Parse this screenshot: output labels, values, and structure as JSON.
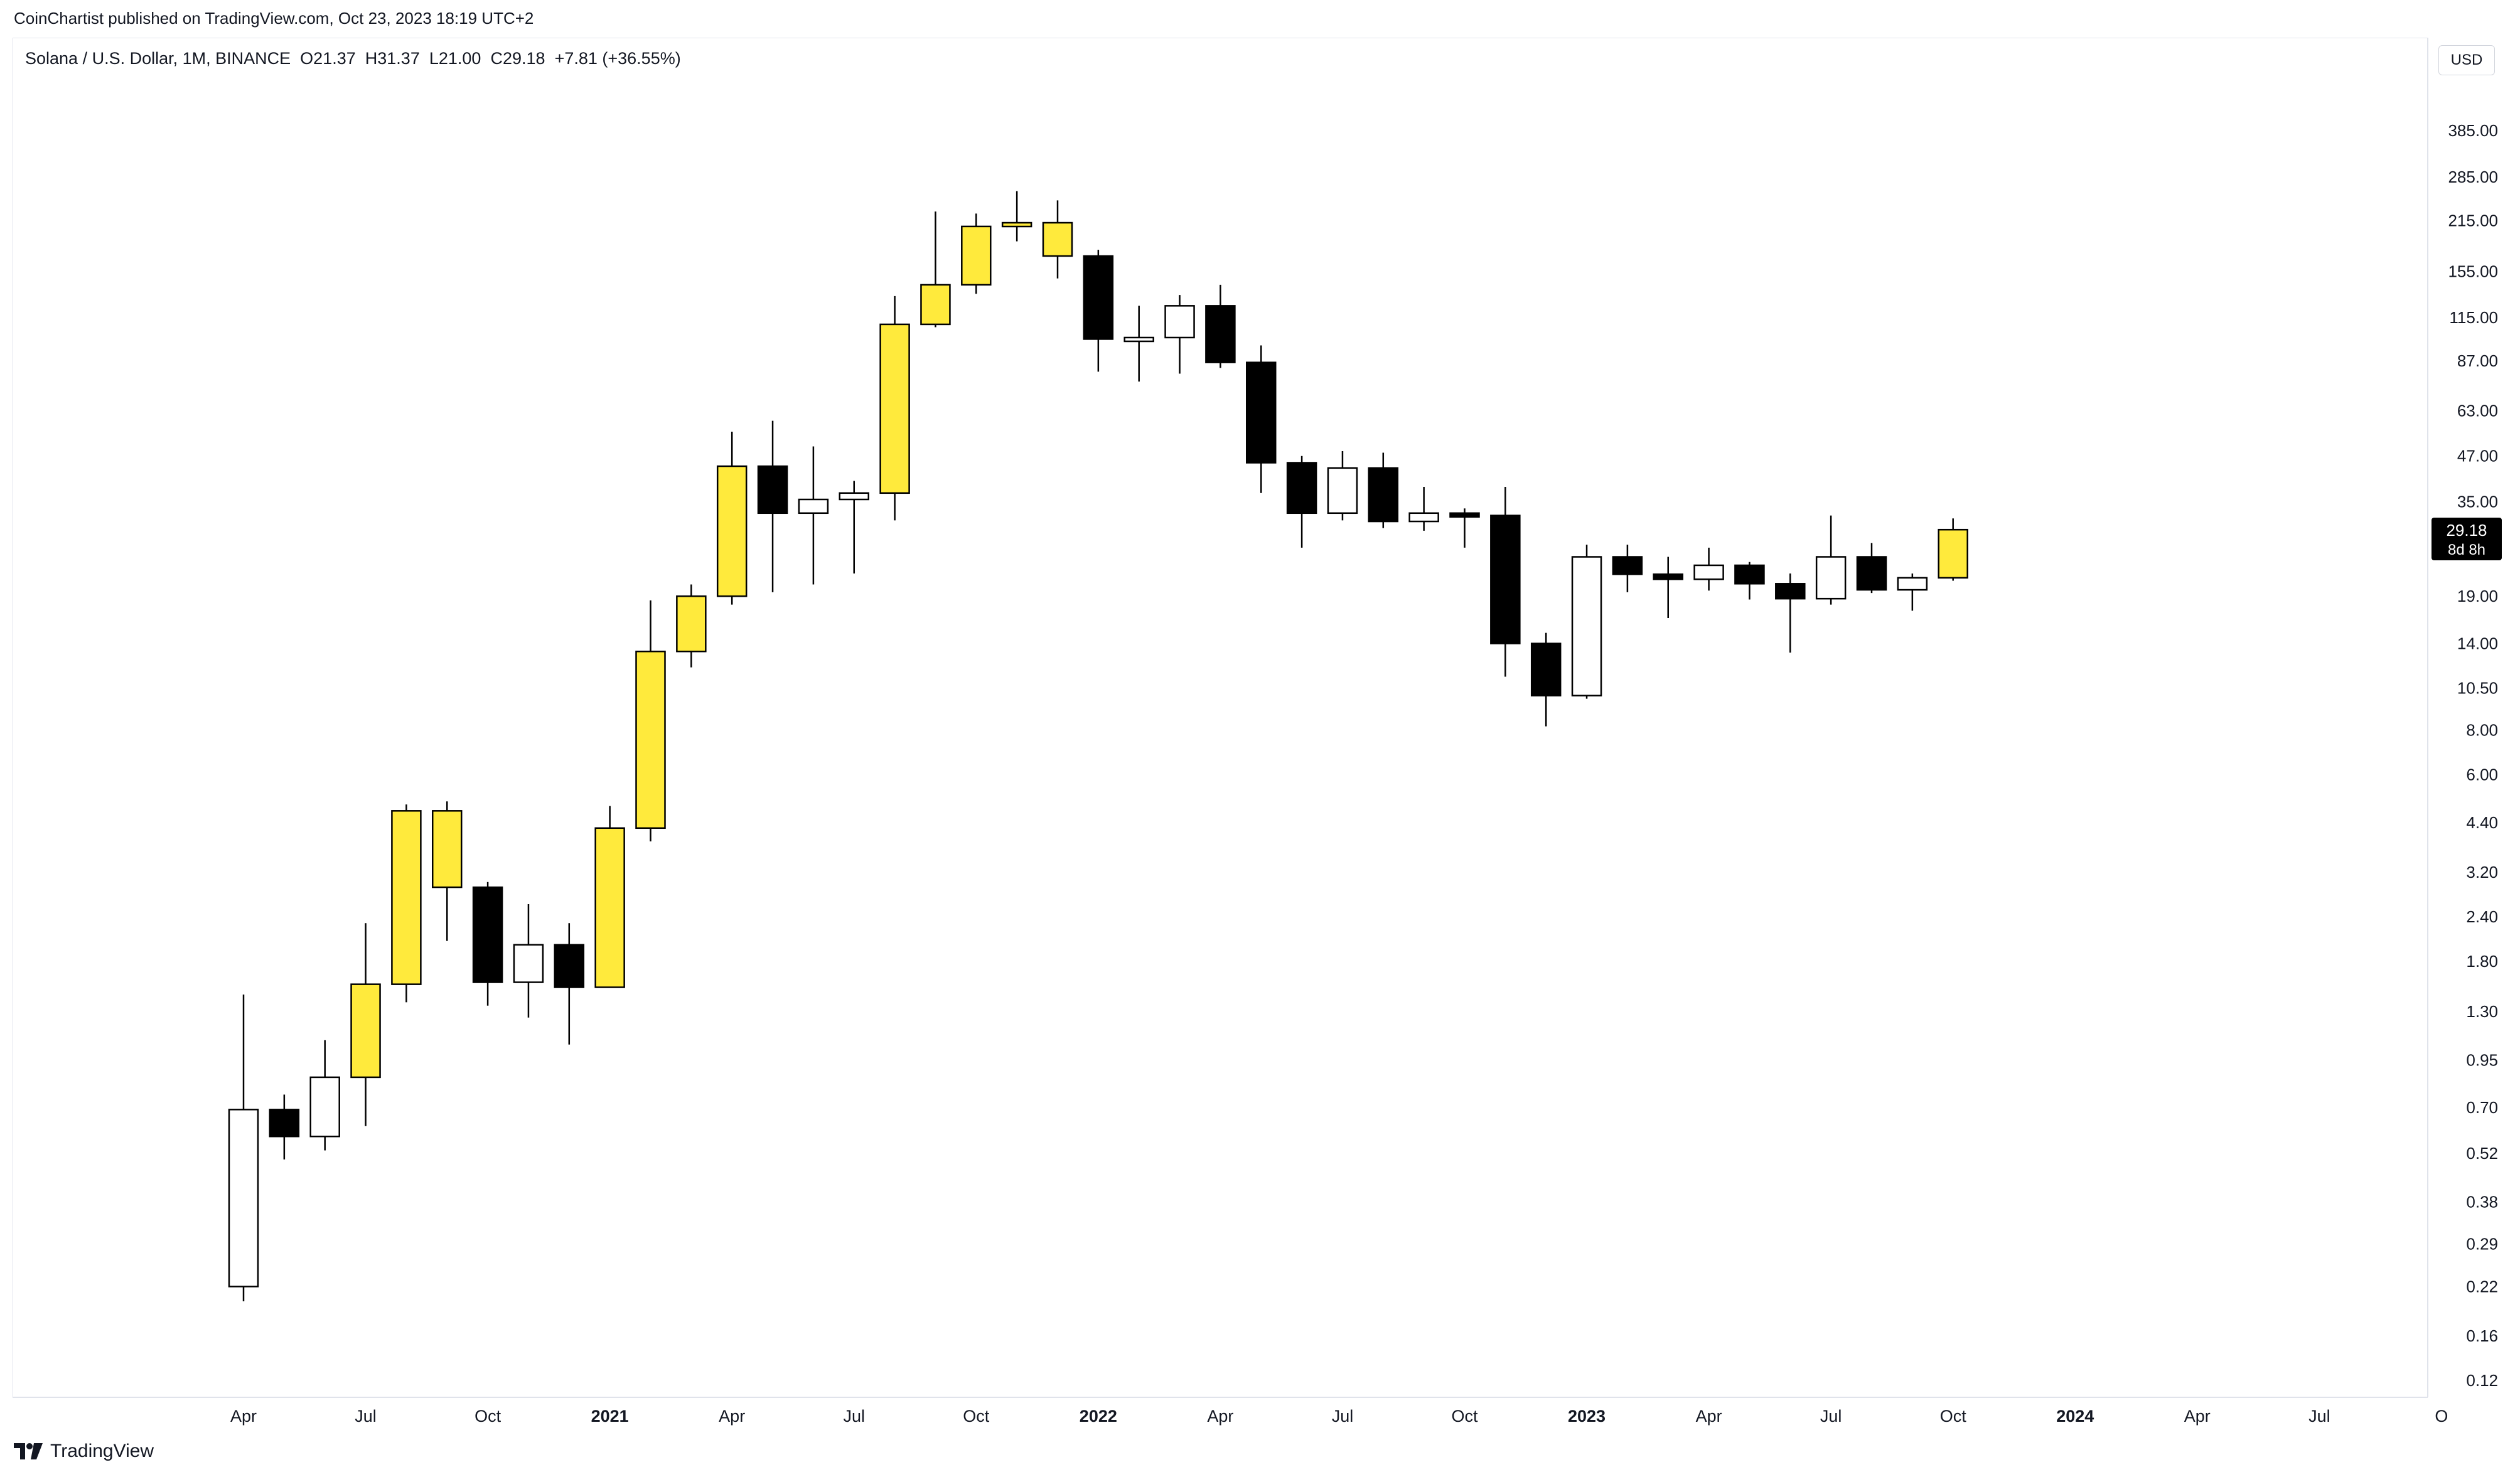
{
  "publisher": "CoinChartist published on TradingView.com, Oct 23, 2023 18:19 UTC+2",
  "legend": {
    "symbol": "Solana / U.S. Dollar, 1M, BINANCE",
    "open": "O21.37",
    "high": "H31.37",
    "low": "L21.00",
    "close": "C29.18",
    "change": "+7.81 (+36.55%)"
  },
  "currency_label": "USD",
  "price_tag": {
    "value": "29.18",
    "countdown": "8d 8h"
  },
  "footer_brand": "TradingView",
  "colors": {
    "bull": "#ffea3c",
    "bear": "#000000",
    "neutral": "#ffffff",
    "axis_text": "#131722",
    "tag_bg": "#000000"
  },
  "chart_data": {
    "type": "candlestick",
    "title": "Solana / U.S. Dollar, 1M, BINANCE",
    "y_scale": "log",
    "ylim": [
      0.1,
      600
    ],
    "y_ticks": [
      "385.00",
      "285.00",
      "215.00",
      "155.00",
      "115.00",
      "87.00",
      "63.00",
      "47.00",
      "35.00",
      "19.00",
      "14.00",
      "10.50",
      "8.00",
      "6.00",
      "4.40",
      "3.20",
      "2.40",
      "1.80",
      "1.30",
      "0.95",
      "0.70",
      "0.52",
      "0.38",
      "0.29",
      "0.22",
      "0.16",
      "0.12"
    ],
    "x_ticks": [
      {
        "label": "Apr",
        "index": 0,
        "bold": false
      },
      {
        "label": "Jul",
        "index": 3,
        "bold": false
      },
      {
        "label": "Oct",
        "index": 6,
        "bold": false
      },
      {
        "label": "2021",
        "index": 9,
        "bold": true
      },
      {
        "label": "Apr",
        "index": 12,
        "bold": false
      },
      {
        "label": "Jul",
        "index": 15,
        "bold": false
      },
      {
        "label": "Oct",
        "index": 18,
        "bold": false
      },
      {
        "label": "2022",
        "index": 21,
        "bold": true
      },
      {
        "label": "Apr",
        "index": 24,
        "bold": false
      },
      {
        "label": "Jul",
        "index": 27,
        "bold": false
      },
      {
        "label": "Oct",
        "index": 30,
        "bold": false
      },
      {
        "label": "2023",
        "index": 33,
        "bold": true
      },
      {
        "label": "Apr",
        "index": 36,
        "bold": false
      },
      {
        "label": "Jul",
        "index": 39,
        "bold": false
      },
      {
        "label": "Oct",
        "index": 42,
        "bold": false
      },
      {
        "label": "2024",
        "index": 45,
        "bold": true
      },
      {
        "label": "Apr",
        "index": 48,
        "bold": false
      },
      {
        "label": "Jul",
        "index": 51,
        "bold": false
      },
      {
        "label": "O",
        "index": 54,
        "bold": false
      }
    ],
    "candles": [
      {
        "o": 0.22,
        "h": 1.45,
        "l": 0.2,
        "c": 0.69,
        "s": "n"
      },
      {
        "o": 0.69,
        "h": 0.76,
        "l": 0.5,
        "c": 0.58,
        "s": "b"
      },
      {
        "o": 0.58,
        "h": 1.08,
        "l": 0.53,
        "c": 0.85,
        "s": "n"
      },
      {
        "o": 0.85,
        "h": 2.3,
        "l": 0.62,
        "c": 1.55,
        "s": "y"
      },
      {
        "o": 1.55,
        "h": 4.95,
        "l": 1.38,
        "c": 4.75,
        "s": "y"
      },
      {
        "o": 4.75,
        "h": 5.05,
        "l": 2.05,
        "c": 2.9,
        "s": "y"
      },
      {
        "o": 2.9,
        "h": 3.0,
        "l": 1.35,
        "c": 1.57,
        "s": "b"
      },
      {
        "o": 1.57,
        "h": 2.6,
        "l": 1.25,
        "c": 2.0,
        "s": "n"
      },
      {
        "o": 2.0,
        "h": 2.3,
        "l": 1.05,
        "c": 1.52,
        "s": "b"
      },
      {
        "o": 1.52,
        "h": 4.9,
        "l": 1.52,
        "c": 4.25,
        "s": "y"
      },
      {
        "o": 4.25,
        "h": 18.5,
        "l": 3.9,
        "c": 13.3,
        "s": "y"
      },
      {
        "o": 13.3,
        "h": 20.5,
        "l": 12.0,
        "c": 19.0,
        "s": "y"
      },
      {
        "o": 19.0,
        "h": 55.0,
        "l": 18.0,
        "c": 44.0,
        "s": "y"
      },
      {
        "o": 44.0,
        "h": 59.0,
        "l": 19.5,
        "c": 32.5,
        "s": "b"
      },
      {
        "o": 32.5,
        "h": 50.0,
        "l": 20.5,
        "c": 35.5,
        "s": "n"
      },
      {
        "o": 35.5,
        "h": 40.0,
        "l": 22.0,
        "c": 37.0,
        "s": "n"
      },
      {
        "o": 37.0,
        "h": 132.0,
        "l": 31.0,
        "c": 110.0,
        "s": "y"
      },
      {
        "o": 110.0,
        "h": 228.0,
        "l": 108.0,
        "c": 142.0,
        "s": "y"
      },
      {
        "o": 142.0,
        "h": 225.0,
        "l": 134.0,
        "c": 207.0,
        "s": "y"
      },
      {
        "o": 207.0,
        "h": 260.0,
        "l": 188.0,
        "c": 212.0,
        "s": "y"
      },
      {
        "o": 212.0,
        "h": 245.0,
        "l": 148.0,
        "c": 171.0,
        "s": "y"
      },
      {
        "o": 171.0,
        "h": 178.0,
        "l": 81.0,
        "c": 100.0,
        "s": "b"
      },
      {
        "o": 100.0,
        "h": 124.0,
        "l": 76.0,
        "c": 101.0,
        "s": "n"
      },
      {
        "o": 101.0,
        "h": 133.0,
        "l": 80.0,
        "c": 124.0,
        "s": "n"
      },
      {
        "o": 124.0,
        "h": 142.0,
        "l": 83.0,
        "c": 86.0,
        "s": "b"
      },
      {
        "o": 86.0,
        "h": 96.0,
        "l": 37.0,
        "c": 45.0,
        "s": "b"
      },
      {
        "o": 45.0,
        "h": 47.0,
        "l": 26.0,
        "c": 32.5,
        "s": "b"
      },
      {
        "o": 32.5,
        "h": 48.5,
        "l": 31.0,
        "c": 43.5,
        "s": "n"
      },
      {
        "o": 43.5,
        "h": 48.0,
        "l": 29.5,
        "c": 30.8,
        "s": "b"
      },
      {
        "o": 30.8,
        "h": 38.5,
        "l": 29.0,
        "c": 32.5,
        "s": "n"
      },
      {
        "o": 32.5,
        "h": 33.5,
        "l": 26.0,
        "c": 32.0,
        "s": "b"
      },
      {
        "o": 32.0,
        "h": 38.5,
        "l": 11.3,
        "c": 14.0,
        "s": "b"
      },
      {
        "o": 14.0,
        "h": 15.0,
        "l": 8.2,
        "c": 10.0,
        "s": "b"
      },
      {
        "o": 10.0,
        "h": 26.5,
        "l": 9.8,
        "c": 24.5,
        "s": "n"
      },
      {
        "o": 24.5,
        "h": 26.5,
        "l": 19.5,
        "c": 21.9,
        "s": "b"
      },
      {
        "o": 21.9,
        "h": 24.5,
        "l": 16.5,
        "c": 21.2,
        "s": "b"
      },
      {
        "o": 21.2,
        "h": 26.0,
        "l": 19.7,
        "c": 23.2,
        "s": "n"
      },
      {
        "o": 23.2,
        "h": 23.7,
        "l": 18.6,
        "c": 20.6,
        "s": "b"
      },
      {
        "o": 20.6,
        "h": 22.0,
        "l": 13.2,
        "c": 18.7,
        "s": "b"
      },
      {
        "o": 18.7,
        "h": 32.0,
        "l": 18.0,
        "c": 24.5,
        "s": "n"
      },
      {
        "o": 24.5,
        "h": 26.8,
        "l": 19.4,
        "c": 19.8,
        "s": "b"
      },
      {
        "o": 19.8,
        "h": 22.0,
        "l": 17.3,
        "c": 21.4,
        "s": "n"
      },
      {
        "o": 21.4,
        "h": 31.4,
        "l": 21.0,
        "c": 29.2,
        "s": "y"
      }
    ]
  }
}
